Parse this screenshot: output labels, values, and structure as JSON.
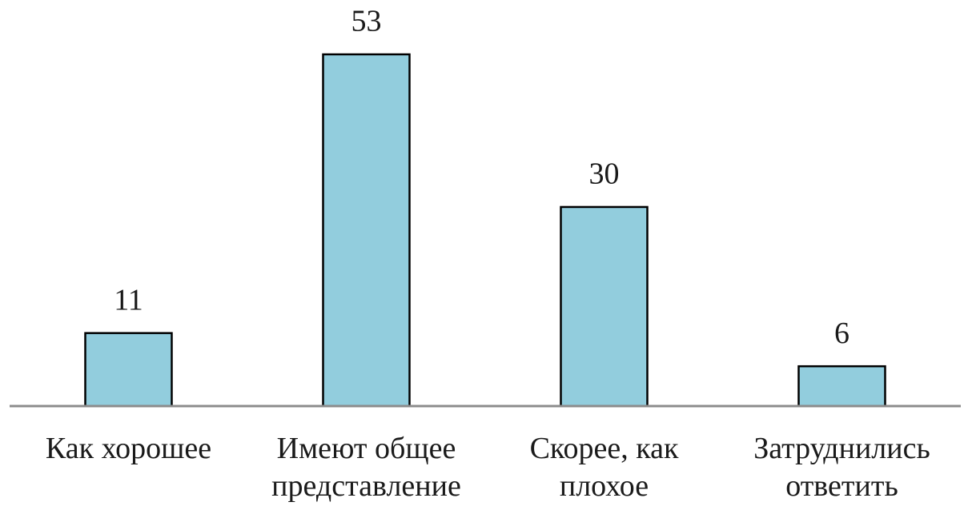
{
  "chart_data": {
    "type": "bar",
    "categories": [
      "Как хорошее",
      "Имеют общее представление",
      "Скорее, как плохое",
      "Затруднились ответить"
    ],
    "values": [
      11,
      53,
      30,
      6
    ],
    "color": "#92cddd"
  }
}
